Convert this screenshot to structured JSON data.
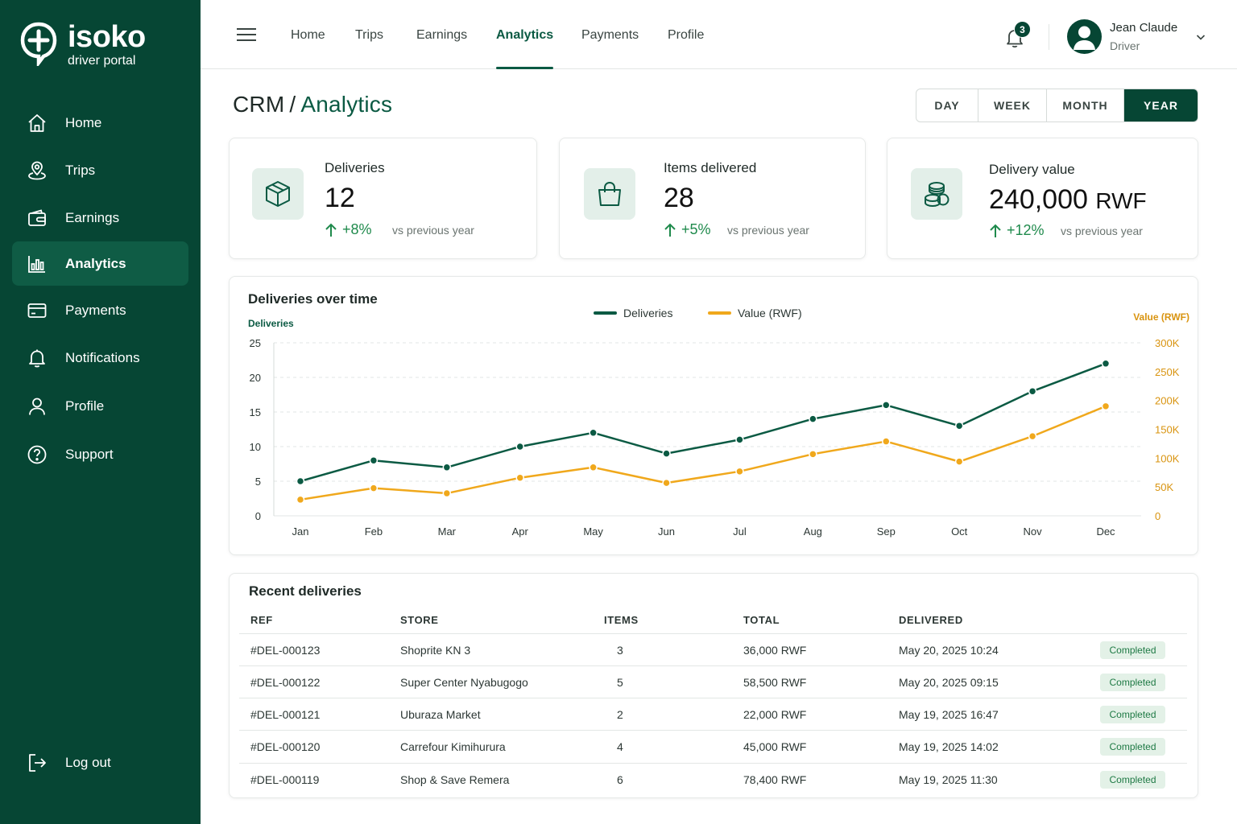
{
  "brand": {
    "name": "isoko",
    "sub": "driver portal"
  },
  "sidebar": {
    "items": [
      {
        "label": "Home",
        "icon": "home-icon"
      },
      {
        "label": "Trips",
        "icon": "map-pin-icon"
      },
      {
        "label": "Earnings",
        "icon": "wallet-icon"
      },
      {
        "label": "Analytics",
        "icon": "bar-chart-icon",
        "active": true
      },
      {
        "label": "Payments",
        "icon": "credit-card-icon"
      },
      {
        "label": "Notifications",
        "icon": "bell-icon"
      },
      {
        "label": "Profile",
        "icon": "user-icon"
      },
      {
        "label": "Support",
        "icon": "help-circle-icon"
      }
    ],
    "logout": "Log out"
  },
  "topnav": {
    "items": [
      "Home",
      "Trips",
      "Earnings",
      "Analytics",
      "Payments",
      "Profile"
    ],
    "active": "Analytics",
    "notifications_count": "3"
  },
  "user": {
    "name": "Jean Claude",
    "role": "Driver"
  },
  "page": {
    "crumb": "CRM",
    "separator": "/",
    "title": "Analytics",
    "periods": [
      "DAY",
      "WEEK",
      "MONTH",
      "YEAR"
    ],
    "active_period": "YEAR"
  },
  "kpis": [
    {
      "label": "Deliveries",
      "value": "12",
      "unit": "",
      "change": "+8%",
      "vs": "vs previous year",
      "icon": "package-icon"
    },
    {
      "label": "Items delivered",
      "value": "28",
      "unit": "",
      "change": "+5%",
      "vs": "vs previous year",
      "icon": "shopping-bag-icon"
    },
    {
      "label": "Delivery value",
      "value": "240,000",
      "unit": "RWF",
      "change": "+12%",
      "vs": "vs previous year",
      "icon": "coins-icon"
    }
  ],
  "chart_data": {
    "type": "line",
    "title": "Deliveries over time",
    "categories": [
      "Jan",
      "Feb",
      "Mar",
      "Apr",
      "May",
      "Jun",
      "Jul",
      "Aug",
      "Sep",
      "Oct",
      "Nov",
      "Dec"
    ],
    "series": [
      {
        "name": "Deliveries",
        "axis": "left",
        "color": "#0b5a43",
        "values": [
          5,
          8,
          7,
          10,
          12,
          9,
          11,
          14,
          16,
          13,
          18,
          22
        ]
      },
      {
        "name": "Value (RWF)",
        "axis": "right",
        "color": "#f0a81c",
        "values": [
          28000,
          48000,
          39000,
          66000,
          84000,
          57000,
          77000,
          107000,
          129000,
          94000,
          138000,
          190000
        ]
      }
    ],
    "ylabel": "Deliveries",
    "ylabel_right": "Value (RWF)",
    "ylim": [
      0,
      25
    ],
    "ylim_right": [
      0,
      300000
    ],
    "yticks": [
      "0",
      "5",
      "10",
      "15",
      "20",
      "25"
    ],
    "yticks_right": [
      "0",
      "50K",
      "100K",
      "150K",
      "200K",
      "250K",
      "300K"
    ],
    "grid": true,
    "legend": "top-center"
  },
  "table": {
    "title": "Recent deliveries",
    "columns": [
      "REF",
      "STORE",
      "ITEMS",
      "TOTAL",
      "DELIVERED"
    ],
    "rows": [
      {
        "ref": "#DEL-000123",
        "store": "Shoprite KN 3",
        "items": "3",
        "total": "36,000 RWF",
        "delivered": "May 20, 2025 10:24",
        "status": "Completed"
      },
      {
        "ref": "#DEL-000122",
        "store": "Super Center Nyabugogo",
        "items": "5",
        "total": "58,500 RWF",
        "delivered": "May 20, 2025 09:15",
        "status": "Completed"
      },
      {
        "ref": "#DEL-000121",
        "store": "Uburaza Market",
        "items": "2",
        "total": "22,000 RWF",
        "delivered": "May 19, 2025 16:47",
        "status": "Completed"
      },
      {
        "ref": "#DEL-000120",
        "store": "Carrefour Kimihurura",
        "items": "4",
        "total": "45,000 RWF",
        "delivered": "May 19, 2025 14:02",
        "status": "Completed"
      },
      {
        "ref": "#DEL-000119",
        "store": "Shop & Save Remera",
        "items": "6",
        "total": "78,400 RWF",
        "delivered": "May 19, 2025 11:30",
        "status": "Completed"
      }
    ]
  },
  "colors": {
    "primary": "#064634",
    "accent": "#0b5a43",
    "value_series": "#f0a81c",
    "positive": "#1f8a4c"
  }
}
